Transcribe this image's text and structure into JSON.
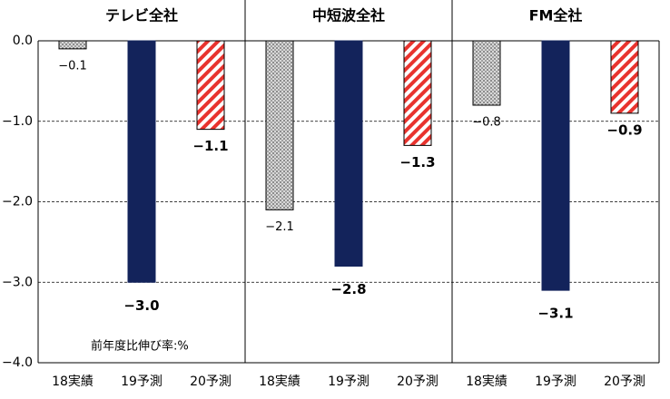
{
  "chart_data": {
    "type": "bar",
    "note": "前年度比伸び率:%",
    "panels": [
      {
        "title": "テレビ全社",
        "categories": [
          "18実績",
          "19予測",
          "20予測"
        ],
        "values": [
          -0.1,
          -3.0,
          -1.1
        ],
        "value_labels": [
          "−0.1",
          "−3.0",
          "−1.1"
        ]
      },
      {
        "title": "中短波全社",
        "categories": [
          "18実績",
          "19予測",
          "20予測"
        ],
        "values": [
          -2.1,
          -2.8,
          -1.3
        ],
        "value_labels": [
          "−2.1",
          "−2.8",
          "−1.3"
        ]
      },
      {
        "title": "FM全社",
        "categories": [
          "18実績",
          "19予測",
          "20予測"
        ],
        "values": [
          -0.8,
          -3.1,
          -0.9
        ],
        "value_labels": [
          "−0.8",
          "−3.1",
          "−0.9"
        ]
      }
    ],
    "colors": [
      "#b0b0b0",
      "#13235b",
      "#e8332e"
    ],
    "ylim": [
      -4,
      0
    ],
    "yticks": [
      {
        "value": 0,
        "label": "0.0"
      },
      {
        "value": -1,
        "label": "−1.0"
      },
      {
        "value": -2,
        "label": "−2.0"
      },
      {
        "value": -3,
        "label": "−3.0"
      },
      {
        "value": -4,
        "label": "−4.0"
      }
    ],
    "grid": true
  }
}
